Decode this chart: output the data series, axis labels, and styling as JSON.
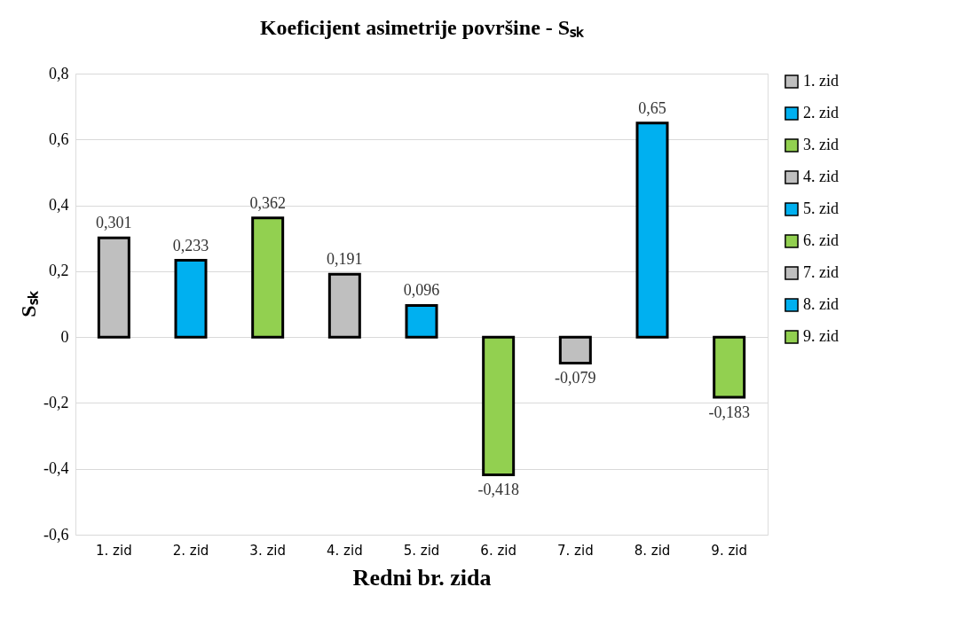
{
  "chart_data": {
    "type": "bar",
    "title": "Koeficijent asimetrije površine - Sₛₖ",
    "xlabel": "Redni br. zida",
    "ylabel": "Sₛₖ",
    "categories": [
      "1. zid",
      "2. zid",
      "3.  zid",
      "4. zid",
      "5. zid",
      "6. zid",
      "7. zid",
      "8. zid",
      "9. zid"
    ],
    "series": [
      {
        "name": "1. zid",
        "color": "#bfbfbf",
        "values": [
          0.301,
          null,
          null,
          null,
          null,
          null,
          null,
          null,
          null
        ],
        "value_labels": [
          "0,301",
          null,
          null,
          null,
          null,
          null,
          null,
          null,
          null
        ]
      },
      {
        "name": "2. zid",
        "color": "#00b0f0",
        "values": [
          null,
          0.233,
          null,
          null,
          null,
          null,
          null,
          null,
          null
        ],
        "value_labels": [
          null,
          "0,233",
          null,
          null,
          null,
          null,
          null,
          null,
          null
        ]
      },
      {
        "name": "3.  zid",
        "color": "#92d050",
        "values": [
          null,
          null,
          0.362,
          null,
          null,
          null,
          null,
          null,
          null
        ],
        "value_labels": [
          null,
          null,
          "0,362",
          null,
          null,
          null,
          null,
          null,
          null
        ]
      },
      {
        "name": "4. zid",
        "color": "#bfbfbf",
        "values": [
          null,
          null,
          null,
          0.191,
          null,
          null,
          null,
          null,
          null
        ],
        "value_labels": [
          null,
          null,
          null,
          "0,191",
          null,
          null,
          null,
          null,
          null
        ]
      },
      {
        "name": "5. zid",
        "color": "#00b0f0",
        "values": [
          null,
          null,
          null,
          null,
          0.096,
          null,
          null,
          null,
          null
        ],
        "value_labels": [
          null,
          null,
          null,
          null,
          "0,096",
          null,
          null,
          null,
          null
        ]
      },
      {
        "name": "6. zid",
        "color": "#92d050",
        "values": [
          null,
          null,
          null,
          null,
          null,
          -0.418,
          null,
          null,
          null
        ],
        "value_labels": [
          null,
          null,
          null,
          null,
          null,
          "-0,418",
          null,
          null,
          null
        ]
      },
      {
        "name": "7. zid",
        "color": "#bfbfbf",
        "values": [
          null,
          null,
          null,
          null,
          null,
          null,
          -0.079,
          null,
          null
        ],
        "value_labels": [
          null,
          null,
          null,
          null,
          null,
          null,
          "-0,079",
          null,
          null
        ]
      },
      {
        "name": "8. zid",
        "color": "#00b0f0",
        "values": [
          null,
          null,
          null,
          null,
          null,
          null,
          null,
          0.65,
          null
        ],
        "value_labels": [
          null,
          null,
          null,
          null,
          null,
          null,
          null,
          "0,65",
          null
        ]
      },
      {
        "name": "9. zid",
        "color": "#92d050",
        "values": [
          null,
          null,
          null,
          null,
          null,
          null,
          null,
          null,
          -0.183
        ],
        "value_labels": [
          null,
          null,
          null,
          null,
          null,
          null,
          null,
          null,
          "-0,183"
        ]
      }
    ],
    "ylim": [
      -0.6,
      0.8
    ],
    "yticks": [
      {
        "value": -0.6,
        "label": "-0,6"
      },
      {
        "value": -0.4,
        "label": "-0,4"
      },
      {
        "value": -0.2,
        "label": "-0,2"
      },
      0,
      {
        "value": 0.2,
        "label": "0,2"
      },
      {
        "value": 0.4,
        "label": "0,4"
      },
      {
        "value": 0.6,
        "label": "0,6"
      },
      {
        "value": 0.8,
        "label": "0,8"
      }
    ],
    "grid": "y",
    "legend": "right"
  }
}
